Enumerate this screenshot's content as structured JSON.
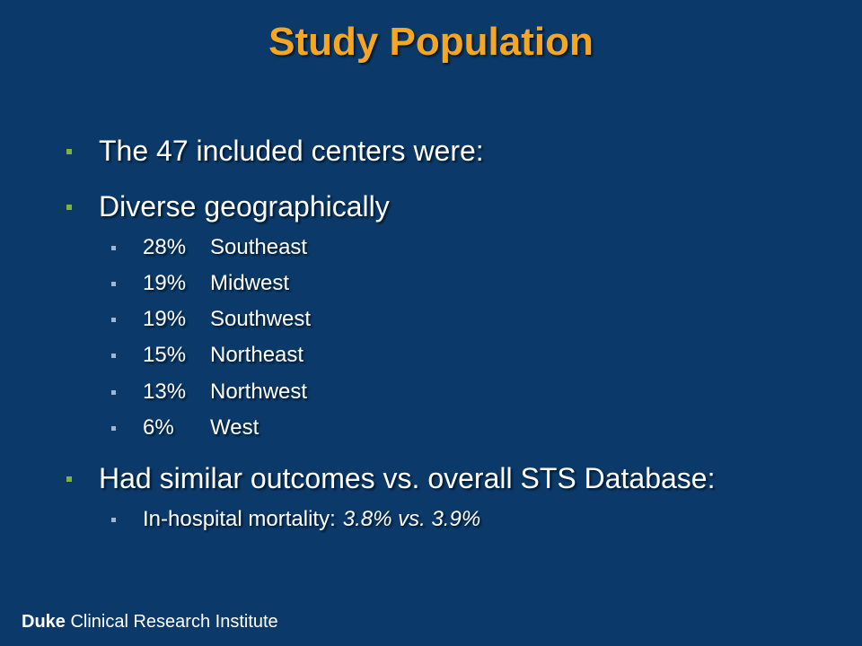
{
  "title": "Study Population",
  "bullets": [
    {
      "text": "The 47 included centers were:"
    },
    {
      "text": "Diverse geographically"
    },
    {
      "text": "Had similar outcomes vs. overall STS Database:"
    }
  ],
  "regions": [
    {
      "pct": "28%",
      "name": "Southeast"
    },
    {
      "pct": "19%",
      "name": "Midwest"
    },
    {
      "pct": "19%",
      "name": "Southwest"
    },
    {
      "pct": "15%",
      "name": "Northeast"
    },
    {
      "pct": "13%",
      "name": "Northwest"
    },
    {
      "pct": "6%",
      "name": "West"
    }
  ],
  "mortality": {
    "label": "In-hospital mortality:",
    "value": "3.8% vs. 3.9%"
  },
  "footer": {
    "brand": "Duke",
    "rest": "Clinical Research Institute"
  },
  "colors": {
    "background": "#0b3a6a",
    "title": "#f5a623",
    "bullet_level1": "#7fb33a",
    "bullet_level2": "#9db7d7"
  }
}
